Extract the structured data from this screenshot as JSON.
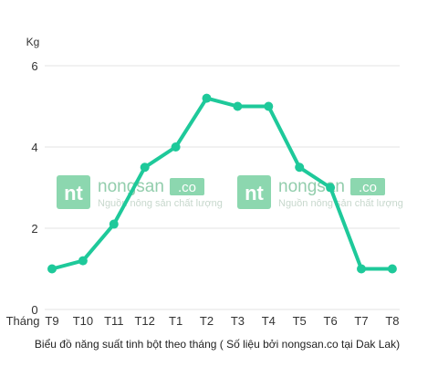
{
  "chart_data": {
    "type": "line",
    "ylabel": "Kg",
    "xlabel": "Tháng",
    "caption": "Biểu đồ năng suất tinh bột theo tháng ( Số liệu bởi nongsan.co tại Dak Lak)",
    "categories": [
      "T9",
      "T10",
      "T11",
      "T12",
      "T1",
      "T2",
      "T3",
      "T4",
      "T5",
      "T6",
      "T7",
      "T8"
    ],
    "values": [
      1.0,
      1.2,
      2.1,
      3.5,
      4.0,
      5.2,
      5.0,
      5.0,
      3.5,
      3.0,
      1.0,
      1.0
    ],
    "ylim": [
      0,
      6
    ],
    "yticks": [
      0,
      2,
      4,
      6
    ],
    "grid": true,
    "line_color": "#1ec99a"
  },
  "watermark": {
    "logo_text": "nt",
    "brand_name": "nongsan",
    "brand_tld": ".co",
    "tagline": "Nguồn nông sản chất lượng"
  }
}
